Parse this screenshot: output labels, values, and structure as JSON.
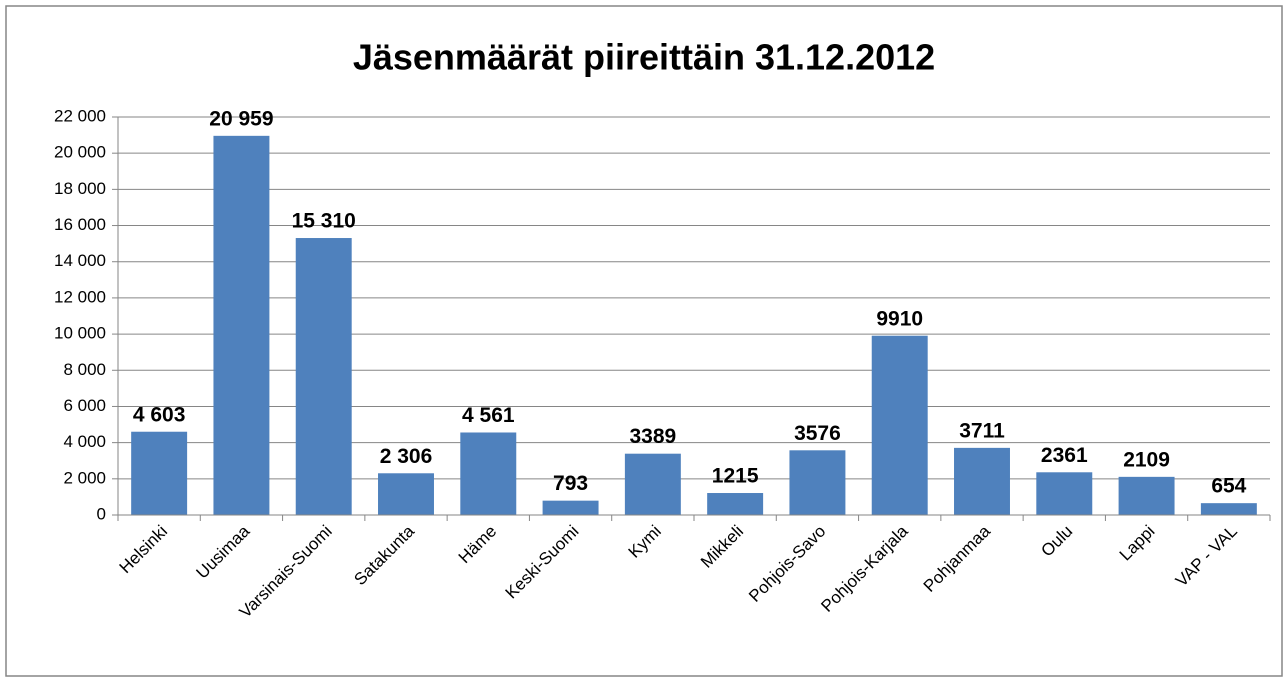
{
  "chart_data": {
    "type": "bar",
    "title": "Jäsenmäärät piireittäin 31.12.2012",
    "categories": [
      "Helsinki",
      "Uusimaa",
      "Varsinais-Suomi",
      "Satakunta",
      "Häme",
      "Keski-Suomi",
      "Kymi",
      "Mikkeli",
      "Pohjois-Savo",
      "Pohjois-Karjala",
      "Pohjanmaa",
      "Oulu",
      "Lappi",
      "VAP - VAL"
    ],
    "values": [
      4603,
      20959,
      15310,
      2306,
      4561,
      793,
      3389,
      1215,
      3576,
      9910,
      3711,
      2361,
      2109,
      654
    ],
    "value_labels": [
      "4 603",
      "20 959",
      "15 310",
      "2 306",
      "4 561",
      "793",
      "3389",
      "1215",
      "3576",
      "9910",
      "3711",
      "2361",
      "2109",
      "654"
    ],
    "color": "#4f81bd",
    "ylim": [
      0,
      22000
    ],
    "yticks": [
      0,
      {
        "value": 2000,
        "label": "2 000"
      },
      {
        "value": 4000,
        "label": "4 000"
      },
      {
        "value": 6000,
        "label": "6 000"
      },
      {
        "value": 8000,
        "label": "8 000"
      },
      {
        "value": 10000,
        "label": "10 000"
      },
      {
        "value": 12000,
        "label": "12 000"
      },
      {
        "value": 14000,
        "label": "14 000"
      },
      {
        "value": 16000,
        "label": "16 000"
      },
      {
        "value": 18000,
        "label": "18 000"
      },
      {
        "value": 20000,
        "label": "20 000"
      },
      {
        "value": 22000,
        "label": "22 000"
      }
    ],
    "grid": true
  }
}
